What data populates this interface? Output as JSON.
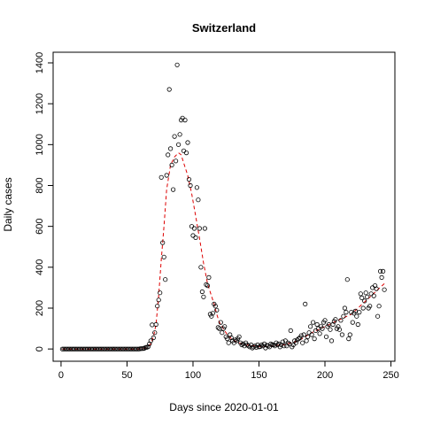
{
  "chart_data": {
    "type": "scatter",
    "title": "Switzerland",
    "xlabel": "Days since 2020-01-01",
    "ylabel": "Daily cases",
    "xlim": [
      -6,
      253
    ],
    "ylim": [
      -60,
      1452
    ],
    "x_ticks": [
      0,
      50,
      100,
      150,
      200,
      250
    ],
    "y_ticks": [
      0,
      200,
      400,
      600,
      800,
      1000,
      1200,
      1400
    ],
    "grid": false,
    "colors": {
      "points": "#000000",
      "smooth_line": "#dd0000"
    },
    "series": [
      {
        "kind": "points",
        "points": [
          [
            1,
            0
          ],
          [
            2,
            0
          ],
          [
            3,
            0
          ],
          [
            4,
            0
          ],
          [
            5,
            0
          ],
          [
            6,
            0
          ],
          [
            7,
            0
          ],
          [
            8,
            0
          ],
          [
            9,
            0
          ],
          [
            10,
            0
          ],
          [
            11,
            0
          ],
          [
            12,
            0
          ],
          [
            13,
            0
          ],
          [
            14,
            0
          ],
          [
            15,
            0
          ],
          [
            16,
            0
          ],
          [
            17,
            0
          ],
          [
            18,
            0
          ],
          [
            19,
            0
          ],
          [
            20,
            0
          ],
          [
            21,
            0
          ],
          [
            22,
            0
          ],
          [
            23,
            0
          ],
          [
            24,
            0
          ],
          [
            25,
            0
          ],
          [
            26,
            0
          ],
          [
            27,
            0
          ],
          [
            28,
            0
          ],
          [
            29,
            0
          ],
          [
            30,
            0
          ],
          [
            31,
            0
          ],
          [
            32,
            0
          ],
          [
            33,
            0
          ],
          [
            34,
            0
          ],
          [
            35,
            0
          ],
          [
            36,
            0
          ],
          [
            37,
            0
          ],
          [
            38,
            0
          ],
          [
            39,
            0
          ],
          [
            40,
            0
          ],
          [
            41,
            0
          ],
          [
            42,
            0
          ],
          [
            43,
            0
          ],
          [
            44,
            0
          ],
          [
            45,
            0
          ],
          [
            46,
            0
          ],
          [
            47,
            0
          ],
          [
            48,
            0
          ],
          [
            49,
            0
          ],
          [
            50,
            0
          ],
          [
            51,
            0
          ],
          [
            52,
            0
          ],
          [
            53,
            0
          ],
          [
            54,
            0
          ],
          [
            55,
            0
          ],
          [
            56,
            0
          ],
          [
            57,
            0
          ],
          [
            58,
            0
          ],
          [
            59,
            0
          ],
          [
            60,
            1
          ],
          [
            61,
            2
          ],
          [
            62,
            2
          ],
          [
            63,
            3
          ],
          [
            64,
            8
          ],
          [
            65,
            8
          ],
          [
            66,
            11
          ],
          [
            67,
            25
          ],
          [
            68,
            40
          ],
          [
            69,
            118
          ],
          [
            70,
            55
          ],
          [
            71,
            80
          ],
          [
            72,
            120
          ],
          [
            73,
            210
          ],
          [
            74,
            240
          ],
          [
            75,
            275
          ],
          [
            76,
            840
          ],
          [
            77,
            520
          ],
          [
            78,
            450
          ],
          [
            79,
            340
          ],
          [
            80,
            850
          ],
          [
            81,
            950
          ],
          [
            82,
            1270
          ],
          [
            83,
            980
          ],
          [
            84,
            900
          ],
          [
            85,
            780
          ],
          [
            86,
            1040
          ],
          [
            87,
            920
          ],
          [
            88,
            1390
          ],
          [
            89,
            1000
          ],
          [
            90,
            1050
          ],
          [
            91,
            1120
          ],
          [
            92,
            1130
          ],
          [
            93,
            970
          ],
          [
            94,
            1120
          ],
          [
            95,
            960
          ],
          [
            96,
            1010
          ],
          [
            97,
            830
          ],
          [
            98,
            800
          ],
          [
            99,
            600
          ],
          [
            100,
            555
          ],
          [
            101,
            590
          ],
          [
            102,
            545
          ],
          [
            103,
            790
          ],
          [
            104,
            730
          ],
          [
            105,
            590
          ],
          [
            106,
            400
          ],
          [
            107,
            280
          ],
          [
            108,
            255
          ],
          [
            109,
            590
          ],
          [
            110,
            315
          ],
          [
            111,
            310
          ],
          [
            112,
            350
          ],
          [
            113,
            170
          ],
          [
            114,
            160
          ],
          [
            115,
            175
          ],
          [
            116,
            220
          ],
          [
            117,
            210
          ],
          [
            118,
            190
          ],
          [
            119,
            105
          ],
          [
            120,
            100
          ],
          [
            121,
            130
          ],
          [
            122,
            80
          ],
          [
            123,
            100
          ],
          [
            124,
            110
          ],
          [
            125,
            60
          ],
          [
            126,
            50
          ],
          [
            127,
            30
          ],
          [
            128,
            70
          ],
          [
            129,
            55
          ],
          [
            130,
            40
          ],
          [
            131,
            30
          ],
          [
            132,
            45
          ],
          [
            133,
            40
          ],
          [
            134,
            50
          ],
          [
            135,
            60
          ],
          [
            136,
            30
          ],
          [
            137,
            20
          ],
          [
            138,
            25
          ],
          [
            139,
            15
          ],
          [
            140,
            30
          ],
          [
            141,
            20
          ],
          [
            142,
            15
          ],
          [
            143,
            10
          ],
          [
            144,
            20
          ],
          [
            145,
            5
          ],
          [
            146,
            10
          ],
          [
            147,
            15
          ],
          [
            148,
            8
          ],
          [
            149,
            20
          ],
          [
            150,
            10
          ],
          [
            151,
            12
          ],
          [
            152,
            20
          ],
          [
            153,
            15
          ],
          [
            154,
            25
          ],
          [
            155,
            5
          ],
          [
            156,
            18
          ],
          [
            157,
            15
          ],
          [
            158,
            10
          ],
          [
            159,
            25
          ],
          [
            160,
            20
          ],
          [
            161,
            20
          ],
          [
            162,
            15
          ],
          [
            163,
            30
          ],
          [
            164,
            20
          ],
          [
            165,
            25
          ],
          [
            166,
            10
          ],
          [
            167,
            20
          ],
          [
            168,
            35
          ],
          [
            169,
            15
          ],
          [
            170,
            40
          ],
          [
            171,
            15
          ],
          [
            172,
            30
          ],
          [
            173,
            25
          ],
          [
            174,
            90
          ],
          [
            175,
            10
          ],
          [
            176,
            20
          ],
          [
            177,
            40
          ],
          [
            178,
            30
          ],
          [
            179,
            45
          ],
          [
            180,
            50
          ],
          [
            181,
            55
          ],
          [
            182,
            65
          ],
          [
            183,
            30
          ],
          [
            184,
            70
          ],
          [
            185,
            220
          ],
          [
            186,
            40
          ],
          [
            187,
            60
          ],
          [
            188,
            80
          ],
          [
            189,
            110
          ],
          [
            190,
            70
          ],
          [
            191,
            130
          ],
          [
            192,
            50
          ],
          [
            193,
            90
          ],
          [
            194,
            120
          ],
          [
            195,
            100
          ],
          [
            196,
            75
          ],
          [
            197,
            110
          ],
          [
            198,
            100
          ],
          [
            199,
            130
          ],
          [
            200,
            140
          ],
          [
            201,
            60
          ],
          [
            202,
            110
          ],
          [
            203,
            120
          ],
          [
            204,
            95
          ],
          [
            205,
            40
          ],
          [
            206,
            120
          ],
          [
            207,
            135
          ],
          [
            208,
            145
          ],
          [
            209,
            100
          ],
          [
            210,
            110
          ],
          [
            211,
            95
          ],
          [
            212,
            140
          ],
          [
            213,
            70
          ],
          [
            214,
            160
          ],
          [
            215,
            200
          ],
          [
            216,
            180
          ],
          [
            217,
            340
          ],
          [
            218,
            50
          ],
          [
            219,
            70
          ],
          [
            220,
            180
          ],
          [
            221,
            130
          ],
          [
            222,
            175
          ],
          [
            223,
            185
          ],
          [
            224,
            160
          ],
          [
            225,
            120
          ],
          [
            226,
            180
          ],
          [
            227,
            270
          ],
          [
            228,
            250
          ],
          [
            229,
            200
          ],
          [
            230,
            235
          ],
          [
            231,
            275
          ],
          [
            232,
            255
          ],
          [
            233,
            200
          ],
          [
            234,
            210
          ],
          [
            235,
            270
          ],
          [
            236,
            300
          ],
          [
            237,
            260
          ],
          [
            238,
            310
          ],
          [
            239,
            295
          ],
          [
            240,
            160
          ],
          [
            241,
            210
          ],
          [
            242,
            380
          ],
          [
            243,
            350
          ],
          [
            244,
            380
          ],
          [
            245,
            290
          ]
        ]
      },
      {
        "kind": "smooth",
        "points": [
          [
            1,
            0
          ],
          [
            10,
            0
          ],
          [
            20,
            0
          ],
          [
            30,
            0
          ],
          [
            40,
            0
          ],
          [
            50,
            0
          ],
          [
            58,
            0
          ],
          [
            61,
            2
          ],
          [
            63,
            4
          ],
          [
            65,
            8
          ],
          [
            68,
            25
          ],
          [
            70,
            60
          ],
          [
            72,
            120
          ],
          [
            74,
            260
          ],
          [
            76,
            440
          ],
          [
            78,
            600
          ],
          [
            80,
            780
          ],
          [
            83,
            900
          ],
          [
            86,
            940
          ],
          [
            89,
            960
          ],
          [
            91,
            950
          ],
          [
            93,
            910
          ],
          [
            96,
            850
          ],
          [
            99,
            760
          ],
          [
            102,
            650
          ],
          [
            105,
            540
          ],
          [
            108,
            420
          ],
          [
            111,
            320
          ],
          [
            114,
            260
          ],
          [
            116,
            220
          ],
          [
            118,
            170
          ],
          [
            120,
            130
          ],
          [
            123,
            100
          ],
          [
            126,
            70
          ],
          [
            130,
            45
          ],
          [
            135,
            30
          ],
          [
            140,
            20
          ],
          [
            150,
            12
          ],
          [
            160,
            15
          ],
          [
            170,
            22
          ],
          [
            180,
            40
          ],
          [
            190,
            80
          ],
          [
            200,
            110
          ],
          [
            210,
            140
          ],
          [
            220,
            170
          ],
          [
            230,
            230
          ],
          [
            240,
            290
          ],
          [
            245,
            320
          ]
        ]
      }
    ]
  }
}
